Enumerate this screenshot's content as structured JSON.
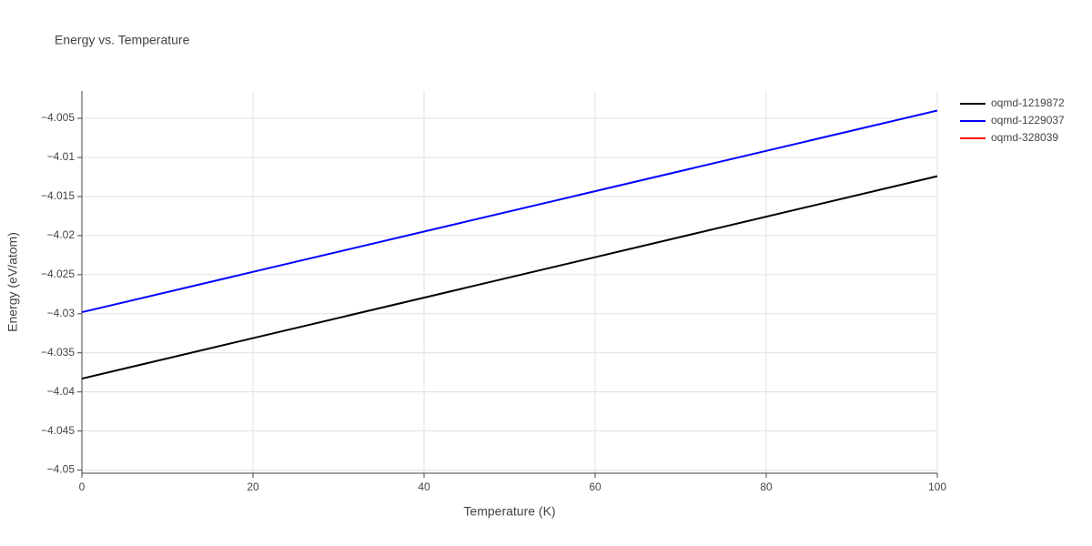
{
  "chart_data": {
    "type": "line",
    "title": "Energy vs. Temperature",
    "x_label": "Temperature (K)",
    "y_label": "Energy (eV/atom)",
    "x": [
      0,
      100
    ],
    "series": [
      {
        "name": "oqmd-1219872",
        "color": "#000000",
        "values": [
          -4.0383,
          -4.0124
        ]
      },
      {
        "name": "oqmd-1229037",
        "color": "#0000ff",
        "values": [
          -4.0298,
          -4.004
        ]
      },
      {
        "name": "oqmd-328039",
        "color": "#ff0000",
        "values": [
          null,
          null
        ]
      }
    ],
    "xlim": [
      0,
      100
    ],
    "xticks": [
      0,
      20,
      40,
      60,
      80,
      100
    ],
    "ylim": [
      -4.0504,
      -4.0015
    ],
    "yticks": [
      {
        "value": -4.05,
        "label": "−4.05"
      },
      {
        "value": -4.045,
        "label": "−4.045"
      },
      {
        "value": -4.04,
        "label": "−4.04"
      },
      {
        "value": -4.035,
        "label": "−4.035"
      },
      {
        "value": -4.03,
        "label": "−4.03"
      },
      {
        "value": -4.025,
        "label": "−4.025"
      },
      {
        "value": -4.02,
        "label": "−4.02"
      },
      {
        "value": -4.015,
        "label": "−4.015"
      },
      {
        "value": -4.01,
        "label": "−4.01"
      },
      {
        "value": -4.005,
        "label": "−4.005"
      }
    ],
    "grid": true,
    "legend": "right"
  }
}
